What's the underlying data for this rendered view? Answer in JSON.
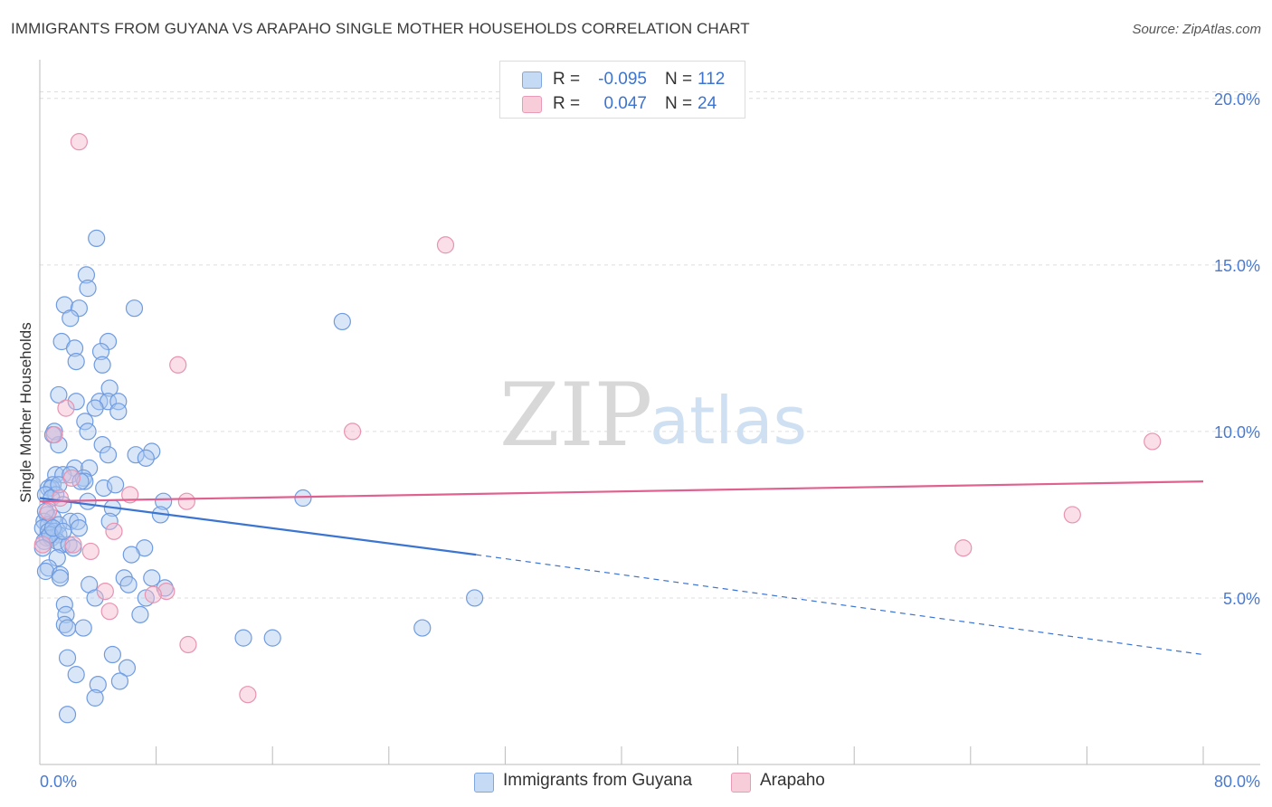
{
  "title": "IMMIGRANTS FROM GUYANA VS ARAPAHO SINGLE MOTHER HOUSEHOLDS CORRELATION CHART",
  "source": "Source: ZipAtlas.com",
  "watermark": {
    "zip": "ZIP",
    "atlas": "atlas"
  },
  "colors": {
    "blue": "#3b74d1",
    "blue_fill": "#aac8ef",
    "pink": "#e0608f",
    "pink_fill": "#f4b9cd",
    "grid": "#dddddd"
  },
  "legend": {
    "rows": [
      {
        "r_label": "R =",
        "r_value": "-0.095",
        "n_label": "N =",
        "n_value": "112"
      },
      {
        "r_label": "R =",
        "r_value": "0.047",
        "n_label": "N =",
        "n_value": "24"
      }
    ]
  },
  "bottom_legend": {
    "series1": "Immigrants from Guyana",
    "series2": "Arapaho"
  },
  "chart_data": {
    "type": "scatter",
    "title": "IMMIGRANTS FROM GUYANA VS ARAPAHO SINGLE MOTHER HOUSEHOLDS CORRELATION CHART",
    "xlabel": "",
    "ylabel": "Single Mother Households",
    "xlim": [
      0,
      80
    ],
    "ylim": [
      0,
      21
    ],
    "x_tick_labels": [
      "0.0%",
      "80.0%"
    ],
    "y_ticks": [
      5,
      10,
      15,
      20
    ],
    "y_tick_labels": [
      "5.0%",
      "10.0%",
      "15.0%",
      "20.0%"
    ],
    "series": [
      {
        "name": "Immigrants from Guyana",
        "color": "#3b74d1",
        "r": -0.095,
        "n": 112,
        "trend": {
          "x": [
            0,
            30
          ],
          "y": [
            8.0,
            6.3
          ],
          "dashed_to": [
            80,
            3.3
          ]
        },
        "points": [
          [
            3.9,
            15.8
          ],
          [
            3.2,
            14.7
          ],
          [
            3.3,
            14.3
          ],
          [
            1.7,
            13.8
          ],
          [
            2.7,
            13.7
          ],
          [
            6.5,
            13.7
          ],
          [
            2.1,
            13.4
          ],
          [
            20.8,
            13.3
          ],
          [
            1.5,
            12.7
          ],
          [
            4.7,
            12.7
          ],
          [
            2.4,
            12.5
          ],
          [
            4.2,
            12.4
          ],
          [
            2.5,
            12.1
          ],
          [
            4.3,
            12.0
          ],
          [
            4.8,
            11.3
          ],
          [
            1.3,
            11.1
          ],
          [
            2.5,
            10.9
          ],
          [
            4.1,
            10.9
          ],
          [
            4.7,
            10.9
          ],
          [
            5.4,
            10.9
          ],
          [
            3.8,
            10.7
          ],
          [
            5.4,
            10.6
          ],
          [
            3.1,
            10.3
          ],
          [
            3.3,
            10.0
          ],
          [
            1.0,
            10.0
          ],
          [
            1.3,
            9.6
          ],
          [
            4.3,
            9.6
          ],
          [
            6.6,
            9.3
          ],
          [
            7.7,
            9.4
          ],
          [
            4.7,
            9.3
          ],
          [
            7.3,
            9.2
          ],
          [
            2.4,
            8.9
          ],
          [
            3.4,
            8.9
          ],
          [
            1.1,
            8.7
          ],
          [
            1.6,
            8.7
          ],
          [
            2.1,
            8.7
          ],
          [
            3.0,
            8.6
          ],
          [
            3.1,
            8.5
          ],
          [
            0.9,
            8.4
          ],
          [
            0.6,
            8.3
          ],
          [
            0.8,
            8.3
          ],
          [
            2.8,
            8.5
          ],
          [
            4.4,
            8.3
          ],
          [
            5.2,
            8.4
          ],
          [
            1.1,
            8.1
          ],
          [
            0.4,
            8.1
          ],
          [
            0.8,
            8.0
          ],
          [
            18.1,
            8.0
          ],
          [
            8.5,
            7.9
          ],
          [
            1.6,
            7.8
          ],
          [
            3.3,
            7.9
          ],
          [
            5.0,
            7.7
          ],
          [
            0.5,
            7.5
          ],
          [
            0.9,
            7.4
          ],
          [
            0.3,
            7.3
          ],
          [
            0.6,
            7.2
          ],
          [
            1.3,
            7.2
          ],
          [
            2.1,
            7.3
          ],
          [
            2.6,
            7.3
          ],
          [
            4.8,
            7.3
          ],
          [
            8.3,
            7.5
          ],
          [
            0.2,
            7.1
          ],
          [
            0.6,
            7.0
          ],
          [
            1.0,
            7.0
          ],
          [
            1.3,
            6.9
          ],
          [
            2.7,
            7.1
          ],
          [
            0.5,
            6.8
          ],
          [
            0.8,
            6.8
          ],
          [
            0.3,
            6.7
          ],
          [
            1.2,
            6.7
          ],
          [
            1.5,
            6.6
          ],
          [
            2.0,
            6.6
          ],
          [
            2.3,
            6.5
          ],
          [
            7.2,
            6.5
          ],
          [
            6.3,
            6.3
          ],
          [
            1.2,
            6.2
          ],
          [
            0.6,
            5.9
          ],
          [
            0.4,
            5.8
          ],
          [
            1.4,
            5.7
          ],
          [
            1.4,
            5.6
          ],
          [
            5.8,
            5.6
          ],
          [
            7.7,
            5.6
          ],
          [
            3.4,
            5.4
          ],
          [
            6.1,
            5.4
          ],
          [
            8.6,
            5.3
          ],
          [
            7.3,
            5.0
          ],
          [
            3.8,
            5.0
          ],
          [
            29.9,
            5.0
          ],
          [
            1.7,
            4.8
          ],
          [
            1.8,
            4.5
          ],
          [
            6.9,
            4.5
          ],
          [
            1.7,
            4.2
          ],
          [
            1.9,
            4.1
          ],
          [
            3.0,
            4.1
          ],
          [
            26.3,
            4.1
          ],
          [
            14.0,
            3.8
          ],
          [
            16.0,
            3.8
          ],
          [
            1.9,
            3.2
          ],
          [
            5.0,
            3.3
          ],
          [
            6.0,
            2.9
          ],
          [
            2.5,
            2.7
          ],
          [
            4.0,
            2.4
          ],
          [
            5.5,
            2.5
          ],
          [
            3.8,
            2.0
          ],
          [
            1.9,
            1.5
          ],
          [
            0.9,
            9.9
          ],
          [
            1.3,
            8.4
          ],
          [
            0.7,
            6.9
          ],
          [
            0.4,
            7.6
          ],
          [
            0.9,
            7.1
          ],
          [
            1.6,
            7.0
          ],
          [
            0.2,
            6.5
          ]
        ]
      },
      {
        "name": "Arapaho",
        "color": "#e0608f",
        "r": 0.047,
        "n": 24,
        "trend": {
          "x": [
            0,
            80
          ],
          "y": [
            7.9,
            8.5
          ]
        },
        "points": [
          [
            2.7,
            18.7
          ],
          [
            27.9,
            15.6
          ],
          [
            9.5,
            12.0
          ],
          [
            1.8,
            10.7
          ],
          [
            21.5,
            10.0
          ],
          [
            76.5,
            9.7
          ],
          [
            1.0,
            9.9
          ],
          [
            2.2,
            8.6
          ],
          [
            6.2,
            8.1
          ],
          [
            1.4,
            8.0
          ],
          [
            10.1,
            7.9
          ],
          [
            71.0,
            7.5
          ],
          [
            0.6,
            7.6
          ],
          [
            5.1,
            7.0
          ],
          [
            63.5,
            6.5
          ],
          [
            2.3,
            6.6
          ],
          [
            3.5,
            6.4
          ],
          [
            4.5,
            5.2
          ],
          [
            8.7,
            5.2
          ],
          [
            7.8,
            5.1
          ],
          [
            4.8,
            4.6
          ],
          [
            10.2,
            3.6
          ],
          [
            14.3,
            2.1
          ],
          [
            0.2,
            6.6
          ]
        ]
      }
    ]
  }
}
